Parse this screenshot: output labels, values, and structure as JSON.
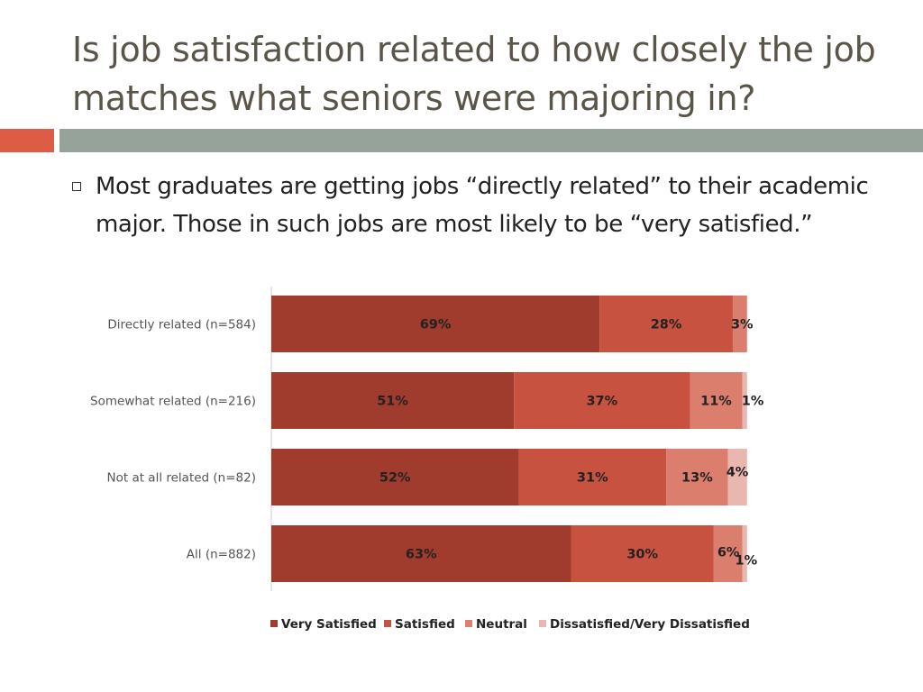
{
  "slide": {
    "title": "Is job satisfaction related to how closely the job matches what seniors were majoring in?",
    "bullet": "Most graduates are getting jobs “directly related” to their academic major.  Those in such jobs are most likely to be “very satisfied.”"
  },
  "colors": {
    "accent_left": "#dd5c45",
    "accent_band": "#95a39a",
    "very_satisfied": "#a03c2e",
    "satisfied": "#c85240",
    "neutral": "#db7e6e",
    "dissatisfied": "#eab7ae"
  },
  "chart_data": {
    "type": "bar",
    "orientation": "horizontal",
    "stacked": true,
    "categories": [
      "Directly related (n=584)",
      "Somewhat related (n=216)",
      "Not at all related (n=82)",
      "All (n=882)"
    ],
    "series": [
      {
        "name": "Very Satisfied",
        "values": [
          69,
          51,
          52,
          63
        ],
        "labels": [
          "69%",
          "51%",
          "52%",
          "63%"
        ]
      },
      {
        "name": "Satisfied",
        "values": [
          28,
          37,
          31,
          30
        ],
        "labels": [
          "28%",
          "37%",
          "31%",
          "30%"
        ]
      },
      {
        "name": "Neutral",
        "values": [
          3,
          11,
          13,
          6
        ],
        "labels": [
          "3%",
          "11%",
          "13%",
          "6%"
        ]
      },
      {
        "name": "Dissatisfied/Very Dissatisfied",
        "values": [
          0,
          1,
          4,
          1
        ],
        "labels": [
          "",
          "1%",
          "4%",
          "1%"
        ]
      }
    ],
    "xlim": [
      0,
      100
    ],
    "legend": "bottom",
    "grid": false
  }
}
